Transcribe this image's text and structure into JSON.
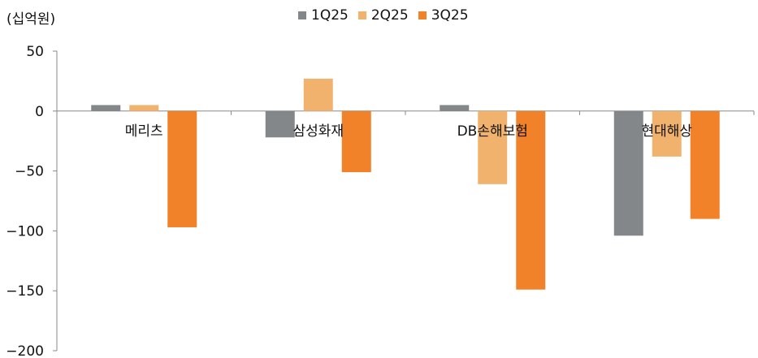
{
  "chart_data": {
    "type": "bar",
    "unit_label": "(십억원)",
    "categories": [
      "메리츠",
      "삼성화재",
      "DB손해보험",
      "현대해상"
    ],
    "series": [
      {
        "name": "1Q25",
        "color": "#848789",
        "values": [
          5,
          -22,
          5,
          -104
        ]
      },
      {
        "name": "2Q25",
        "color": "#F1B26D",
        "values": [
          5,
          27,
          -61,
          -38
        ]
      },
      {
        "name": "3Q25",
        "color": "#F1822A",
        "values": [
          -97,
          -51,
          -149,
          -90
        ]
      }
    ],
    "y_ticks": [
      "50",
      "0",
      "−50",
      "−100",
      "−150",
      "−200"
    ],
    "ylim": [
      -200,
      50
    ],
    "legend_position": "top-center",
    "grid": false
  }
}
